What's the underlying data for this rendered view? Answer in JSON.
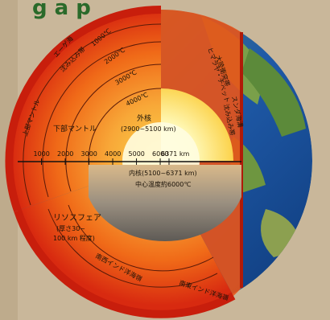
{
  "banner": {
    "text": "g  a  p"
  },
  "diagram": {
    "isotherms": [
      "1000℃",
      "2000℃",
      "3000℃",
      "4000℃"
    ],
    "layers": {
      "lower_mantle": "下部マントル",
      "upper_mantle": "上部マントル",
      "outer_core": "外核",
      "outer_core_depth": "(2900~5100 km)",
      "inner_core": "内核(5100~6371 km)",
      "center_temp": "中心温度約6000℃",
      "lithosphere": "リソスフェア",
      "lithosphere_thickness_1": "(厚さ30~",
      "lithosphere_thickness_2": "100 km 程度)"
    },
    "features_left": [
      "エーゲ海",
      "沈み込み帯"
    ],
    "features_right": [
      "ヒマラヤ・チベット",
      "大陸衝突帯",
      "スンダ海溝",
      "沈み込み帯"
    ],
    "ridges": [
      "南西インド洋海嶺",
      "南東インド洋海嶺"
    ],
    "depth_scale": {
      "ticks": [
        1000,
        2000,
        3000,
        4000,
        5000,
        6000,
        6371
      ],
      "unit": "km"
    }
  },
  "colors": {
    "mantle_outer": "#d82a10",
    "mantle_mid": "#f06a18",
    "mantle_inner": "#f8a838",
    "outer_core": "#fbd24a",
    "inner_core": "#fff6b0",
    "ocean": "#1f5aa8",
    "land": "#5c8a3a"
  }
}
